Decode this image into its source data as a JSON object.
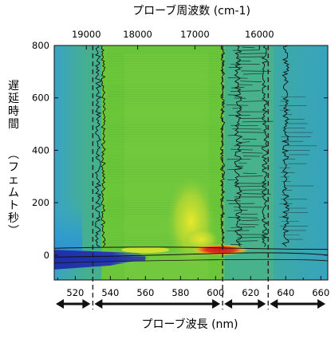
{
  "chart_data": {
    "type": "heatmap",
    "title_top": "プローブ周波数 (cm-1)",
    "xlabel": "プローブ波長 (nm)",
    "ylabel_main": "遅延時間",
    "ylabel_unit": "(フェムト秒)",
    "x_bottom_ticks": [
      "520",
      "540",
      "560",
      "580",
      "600",
      "620",
      "640",
      "660"
    ],
    "x_bottom_values": [
      520,
      540,
      560,
      580,
      600,
      620,
      640,
      660
    ],
    "x_top_ticks": [
      "19000",
      "18000",
      "17000",
      "16000"
    ],
    "x_top_values": [
      19000,
      18000,
      17000,
      16000
    ],
    "y_ticks": [
      "0",
      "200",
      "400",
      "600",
      "800"
    ],
    "y_values": [
      0,
      200,
      400,
      600,
      800
    ],
    "xlim": [
      508,
      664
    ],
    "ylim": [
      -95,
      800
    ],
    "dashed_lines_nm": [
      530,
      604,
      630
    ],
    "arrow_ranges_nm": [
      [
        508,
        530
      ],
      [
        530,
        604
      ],
      [
        604,
        630
      ],
      [
        630,
        664
      ]
    ],
    "features": [
      {
        "name": "strong-signal",
        "x_nm": [
          590,
          615
        ],
        "delay_fs": 20,
        "color": "#d82020"
      },
      {
        "name": "negative-signal",
        "x_nm": [
          512,
          560
        ],
        "delay_fs": -10,
        "color": "#2030a8"
      },
      {
        "name": "oscillation-band",
        "x_nm": [
          535,
          605
        ],
        "delay_fs": [
          0,
          800
        ],
        "color": "#6cc63a"
      }
    ],
    "colors": {
      "background": "#45b38f",
      "blue": "#2f9bd0",
      "green": "#6cc63a",
      "yellow": "#e8e830",
      "red": "#d82020",
      "dark_blue": "#2030a8"
    }
  }
}
